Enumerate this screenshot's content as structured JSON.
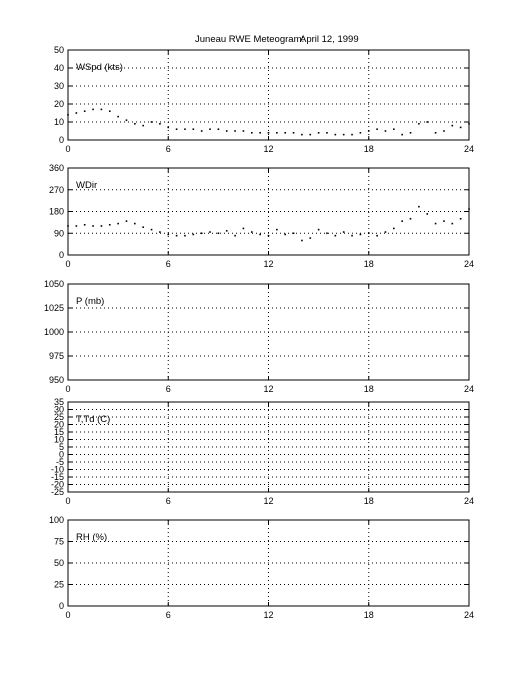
{
  "title": {
    "station": "Juneau RWE Meteogram:",
    "date": "April 12, 1999"
  },
  "colors": {
    "axis": "#000000",
    "grid": "#000000",
    "trace": "#000000",
    "background": "#ffffff"
  },
  "chart_data": [
    {
      "type": "scatter",
      "label": "WSpd (kts)",
      "xlim": [
        0,
        24
      ],
      "xticks": [
        0,
        6,
        12,
        18,
        24
      ],
      "ylim": [
        0,
        50
      ],
      "yticks": [
        0,
        10,
        20,
        30,
        40,
        50
      ],
      "grid": true,
      "x": [
        0,
        0.5,
        1,
        1.5,
        2,
        2.5,
        3,
        3.5,
        4,
        4.5,
        5,
        5.5,
        6,
        6.5,
        7,
        7.5,
        8,
        8.5,
        9,
        9.5,
        10,
        10.5,
        11,
        11.5,
        12,
        12.5,
        13,
        13.5,
        14,
        14.5,
        15,
        15.5,
        16,
        16.5,
        17,
        17.5,
        18,
        18.5,
        19,
        19.5,
        20,
        20.5,
        21,
        21.5,
        22,
        22.5,
        23,
        23.5,
        24
      ],
      "y": [
        14,
        15,
        16,
        17,
        17,
        16,
        13,
        11,
        9,
        8,
        10,
        9,
        7,
        6,
        6,
        6,
        5,
        6,
        6,
        5,
        5,
        5,
        4,
        4,
        4,
        4,
        4,
        4,
        3,
        3,
        4,
        4,
        3,
        3,
        3,
        4,
        5,
        6,
        5,
        6,
        3,
        4,
        9,
        10,
        4,
        5,
        8,
        7,
        9
      ]
    },
    {
      "type": "scatter",
      "label": "WDir",
      "xlim": [
        0,
        24
      ],
      "xticks": [
        0,
        6,
        12,
        18,
        24
      ],
      "ylim": [
        0,
        360
      ],
      "yticks": [
        0,
        90,
        180,
        270,
        360
      ],
      "grid": true,
      "x": [
        0,
        0.5,
        1,
        1.5,
        2,
        2.5,
        3,
        3.5,
        4,
        4.5,
        5,
        5.5,
        6,
        6.5,
        7,
        7.5,
        8,
        8.5,
        9,
        9.5,
        10,
        10.5,
        11,
        11.5,
        12,
        12.5,
        13,
        13.5,
        14,
        14.5,
        15,
        15.5,
        16,
        16.5,
        17,
        17.5,
        18,
        18.5,
        19,
        19.5,
        20,
        20.5,
        21,
        21.5,
        22,
        22.5,
        23,
        23.5,
        24
      ],
      "y": [
        120,
        120,
        125,
        120,
        120,
        125,
        130,
        140,
        130,
        115,
        105,
        95,
        85,
        80,
        80,
        85,
        90,
        95,
        90,
        100,
        80,
        110,
        95,
        85,
        80,
        105,
        85,
        90,
        60,
        70,
        105,
        90,
        80,
        95,
        80,
        85,
        90,
        80,
        95,
        110,
        140,
        150,
        200,
        170,
        130,
        140,
        130,
        150,
        190
      ]
    },
    {
      "type": "scatter",
      "label": "P (mb)",
      "xlim": [
        0,
        24
      ],
      "xticks": [
        0,
        6,
        12,
        18,
        24
      ],
      "ylim": [
        950,
        1050
      ],
      "yticks": [
        950,
        975,
        1000,
        1025,
        1050
      ],
      "grid": true,
      "x": [],
      "y": []
    },
    {
      "type": "scatter",
      "label": "T,Td (C)",
      "xlim": [
        0,
        24
      ],
      "xticks": [
        0,
        6,
        12,
        18,
        24
      ],
      "ylim": [
        -25,
        35
      ],
      "yticks": [
        -25,
        -15,
        -5,
        5,
        15,
        25,
        35
      ],
      "ytick_labels": [
        "-25",
        "-15",
        "-5",
        "5",
        "15",
        "25",
        "35"
      ],
      "ytick_minor": [
        -20,
        -10,
        0,
        10,
        20,
        30
      ],
      "ytick_minor_labels": [
        "-20",
        "-10",
        "0",
        "10",
        "20",
        "30"
      ],
      "grid": true,
      "x": [],
      "y": []
    },
    {
      "type": "scatter",
      "label": "RH (%)",
      "xlim": [
        0,
        24
      ],
      "xticks": [
        0,
        6,
        12,
        18,
        24
      ],
      "ylim": [
        0,
        100
      ],
      "yticks": [
        0,
        25,
        50,
        75,
        100
      ],
      "grid": true,
      "x": [],
      "y": []
    }
  ]
}
